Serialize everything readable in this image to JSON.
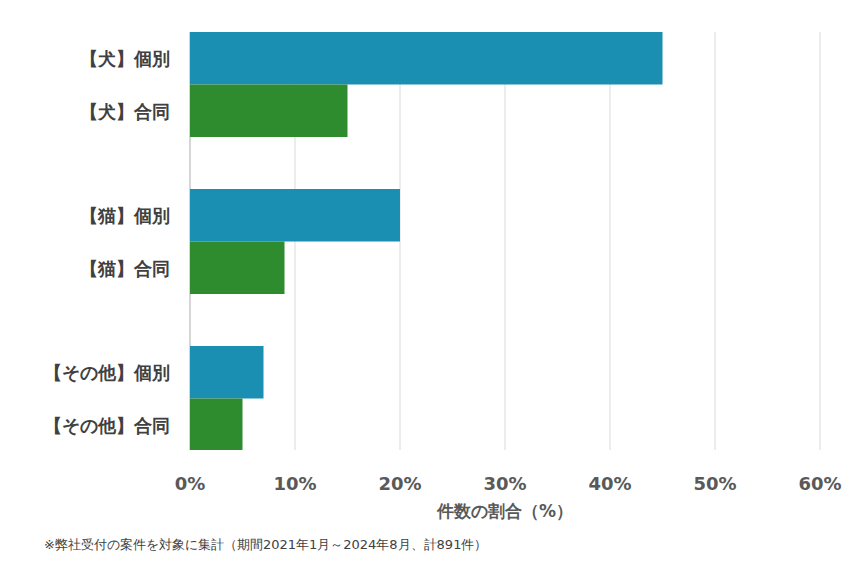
{
  "chart_data": {
    "type": "bar",
    "orientation": "horizontal",
    "categories": [
      "【犬】個別",
      "【犬】合同",
      "【猫】個別",
      "【猫】合同",
      "【その他】個別",
      "【その他】合同"
    ],
    "values": [
      45,
      15,
      20,
      9,
      7,
      5
    ],
    "colors": [
      "#1a8fb1",
      "#2e8b2e",
      "#1a8fb1",
      "#2e8b2e",
      "#1a8fb1",
      "#2e8b2e"
    ],
    "xlim": [
      0,
      60
    ],
    "xticks": [
      {
        "value": 0,
        "label": "0%"
      },
      {
        "value": 10,
        "label": "10%"
      },
      {
        "value": 20,
        "label": "20%"
      },
      {
        "value": 30,
        "label": "30%"
      },
      {
        "value": 40,
        "label": "40%"
      },
      {
        "value": 50,
        "label": "50%"
      },
      {
        "value": 60,
        "label": "60%"
      }
    ],
    "x_label": "件数の割合（%）",
    "annotations": [
      "※弊社受付の案件を対象に集計（期間2021年1月～2024年8月、計891件）"
    ],
    "grid": true
  }
}
